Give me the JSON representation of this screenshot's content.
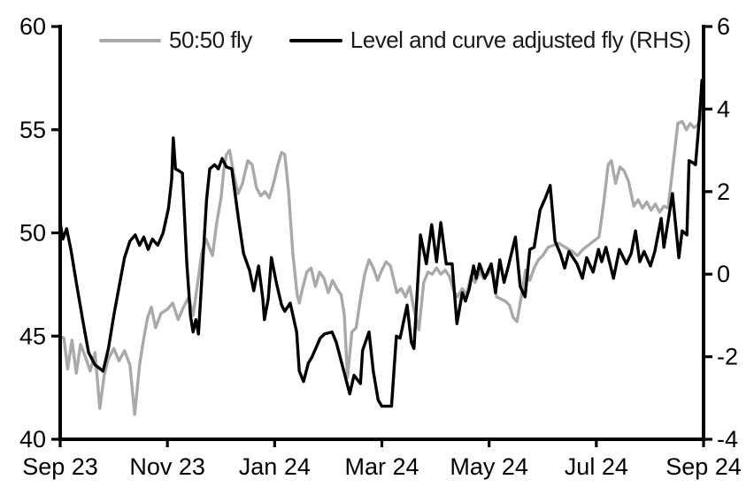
{
  "colors": {
    "background": "#ffffff",
    "axis": "#000000",
    "gray_series": "#a9a9a9",
    "black_series": "#000000"
  },
  "chart_data": {
    "type": "line",
    "title": "",
    "xlabel": "",
    "ylabel_left": "",
    "ylabel_right": "",
    "grid": false,
    "legend_position": "top",
    "x_axis": {
      "tick_labels": [
        "Sep 23",
        "Nov 23",
        "Jan 24",
        "Mar 24",
        "May 24",
        "Jul 24",
        "Sep 24"
      ],
      "tick_positions_months": [
        0,
        2,
        4,
        6,
        8,
        10,
        12
      ],
      "range_months": [
        0,
        12
      ]
    },
    "y_axis_left": {
      "ticks": [
        40,
        45,
        50,
        55,
        60
      ],
      "range": [
        40,
        60
      ]
    },
    "y_axis_right": {
      "ticks": [
        -4,
        -2,
        0,
        2,
        4,
        6
      ],
      "range": [
        -4,
        6
      ]
    },
    "series": [
      {
        "name": "50:50 fly",
        "axis": "left",
        "color": "#a9a9a9",
        "points": [
          [
            0.0,
            45.0
          ],
          [
            0.07,
            44.9
          ],
          [
            0.14,
            43.4
          ],
          [
            0.22,
            44.8
          ],
          [
            0.3,
            43.2
          ],
          [
            0.38,
            44.6
          ],
          [
            0.47,
            44.0
          ],
          [
            0.56,
            43.3
          ],
          [
            0.65,
            44.2
          ],
          [
            0.74,
            41.5
          ],
          [
            0.82,
            43.1
          ],
          [
            0.9,
            43.9
          ],
          [
            1.0,
            44.4
          ],
          [
            1.1,
            43.8
          ],
          [
            1.2,
            44.3
          ],
          [
            1.3,
            43.6
          ],
          [
            1.39,
            41.2
          ],
          [
            1.48,
            43.6
          ],
          [
            1.56,
            44.9
          ],
          [
            1.63,
            45.9
          ],
          [
            1.7,
            46.4
          ],
          [
            1.78,
            45.4
          ],
          [
            1.88,
            46.1
          ],
          [
            2.0,
            46.3
          ],
          [
            2.1,
            46.6
          ],
          [
            2.2,
            45.8
          ],
          [
            2.3,
            46.4
          ],
          [
            2.4,
            46.9
          ],
          [
            2.48,
            46.0
          ],
          [
            2.56,
            47.5
          ],
          [
            2.64,
            49.0
          ],
          [
            2.72,
            49.7
          ],
          [
            2.84,
            48.9
          ],
          [
            2.92,
            50.5
          ],
          [
            3.0,
            51.7
          ],
          [
            3.05,
            53.0
          ],
          [
            3.1,
            53.8
          ],
          [
            3.16,
            54.0
          ],
          [
            3.24,
            52.8
          ],
          [
            3.32,
            51.9
          ],
          [
            3.4,
            52.4
          ],
          [
            3.5,
            53.5
          ],
          [
            3.58,
            53.3
          ],
          [
            3.66,
            52.2
          ],
          [
            3.74,
            51.8
          ],
          [
            3.82,
            52.0
          ],
          [
            3.9,
            51.7
          ],
          [
            3.98,
            52.4
          ],
          [
            4.06,
            53.3
          ],
          [
            4.13,
            53.9
          ],
          [
            4.19,
            53.8
          ],
          [
            4.26,
            52.0
          ],
          [
            4.34,
            49.0
          ],
          [
            4.42,
            47.0
          ],
          [
            4.46,
            46.6
          ],
          [
            4.52,
            47.3
          ],
          [
            4.6,
            48.1
          ],
          [
            4.68,
            48.3
          ],
          [
            4.76,
            47.4
          ],
          [
            4.84,
            48.1
          ],
          [
            4.92,
            47.8
          ],
          [
            5.0,
            47.1
          ],
          [
            5.08,
            47.7
          ],
          [
            5.16,
            47.3
          ],
          [
            5.24,
            47.0
          ],
          [
            5.3,
            46.0
          ],
          [
            5.36,
            43.0
          ],
          [
            5.44,
            45.2
          ],
          [
            5.52,
            45.4
          ],
          [
            5.6,
            46.8
          ],
          [
            5.68,
            48.0
          ],
          [
            5.76,
            48.7
          ],
          [
            5.84,
            48.3
          ],
          [
            5.92,
            47.7
          ],
          [
            6.0,
            48.2
          ],
          [
            6.08,
            48.6
          ],
          [
            6.16,
            48.4
          ],
          [
            6.28,
            47.1
          ],
          [
            6.36,
            47.3
          ],
          [
            6.44,
            46.9
          ],
          [
            6.52,
            47.4
          ],
          [
            6.6,
            46.3
          ],
          [
            6.69,
            45.3
          ],
          [
            6.78,
            47.6
          ],
          [
            6.86,
            48.1
          ],
          [
            6.94,
            48.0
          ],
          [
            7.02,
            48.3
          ],
          [
            7.1,
            48.0
          ],
          [
            7.18,
            48.2
          ],
          [
            7.26,
            47.9
          ],
          [
            7.34,
            47.2
          ],
          [
            7.41,
            46.9
          ],
          [
            7.5,
            47.3
          ],
          [
            7.58,
            47.0
          ],
          [
            7.66,
            47.9
          ],
          [
            7.74,
            47.6
          ],
          [
            7.82,
            48.1
          ],
          [
            7.9,
            47.8
          ],
          [
            7.98,
            48.0
          ],
          [
            8.06,
            48.2
          ],
          [
            8.14,
            46.9
          ],
          [
            8.22,
            46.8
          ],
          [
            8.3,
            46.7
          ],
          [
            8.38,
            46.5
          ],
          [
            8.45,
            45.9
          ],
          [
            8.52,
            45.7
          ],
          [
            8.6,
            46.9
          ],
          [
            8.68,
            48.2
          ],
          [
            8.76,
            47.7
          ],
          [
            8.84,
            48.3
          ],
          [
            8.92,
            48.7
          ],
          [
            9.0,
            48.9
          ],
          [
            9.1,
            49.3
          ],
          [
            9.2,
            49.4
          ],
          [
            9.3,
            49.5
          ],
          [
            9.42,
            49.3
          ],
          [
            9.55,
            49.1
          ],
          [
            9.65,
            48.9
          ],
          [
            9.75,
            49.2
          ],
          [
            9.85,
            49.4
          ],
          [
            9.95,
            49.6
          ],
          [
            10.05,
            49.8
          ],
          [
            10.14,
            51.5
          ],
          [
            10.22,
            53.3
          ],
          [
            10.28,
            53.5
          ],
          [
            10.36,
            52.4
          ],
          [
            10.44,
            53.2
          ],
          [
            10.52,
            53.0
          ],
          [
            10.6,
            52.5
          ],
          [
            10.7,
            51.3
          ],
          [
            10.78,
            51.6
          ],
          [
            10.86,
            51.2
          ],
          [
            10.94,
            51.5
          ],
          [
            11.02,
            51.1
          ],
          [
            11.1,
            51.4
          ],
          [
            11.18,
            51.0
          ],
          [
            11.26,
            51.3
          ],
          [
            11.34,
            51.2
          ],
          [
            11.44,
            53.5
          ],
          [
            11.52,
            55.3
          ],
          [
            11.6,
            55.4
          ],
          [
            11.68,
            55.0
          ],
          [
            11.75,
            55.3
          ],
          [
            11.82,
            55.1
          ],
          [
            11.88,
            55.2
          ],
          [
            11.94,
            55.5
          ],
          [
            12.0,
            56.4
          ]
        ]
      },
      {
        "name": "Level and curve adjusted fly (RHS)",
        "axis": "right",
        "color": "#000000",
        "points": [
          [
            0.0,
            1.25
          ],
          [
            0.05,
            0.85
          ],
          [
            0.12,
            1.1
          ],
          [
            0.2,
            0.6
          ],
          [
            0.3,
            -0.2
          ],
          [
            0.42,
            -1.1
          ],
          [
            0.53,
            -1.9
          ],
          [
            0.65,
            -2.2
          ],
          [
            0.8,
            -2.35
          ],
          [
            0.9,
            -1.8
          ],
          [
            1.0,
            -1.0
          ],
          [
            1.1,
            -0.3
          ],
          [
            1.2,
            0.4
          ],
          [
            1.3,
            0.8
          ],
          [
            1.4,
            0.95
          ],
          [
            1.48,
            0.7
          ],
          [
            1.56,
            0.9
          ],
          [
            1.64,
            0.6
          ],
          [
            1.72,
            0.85
          ],
          [
            1.82,
            0.7
          ],
          [
            1.92,
            1.0
          ],
          [
            2.02,
            1.6
          ],
          [
            2.08,
            2.3
          ],
          [
            2.11,
            3.3
          ],
          [
            2.15,
            2.55
          ],
          [
            2.22,
            2.5
          ],
          [
            2.28,
            2.45
          ],
          [
            2.36,
            0.3
          ],
          [
            2.43,
            -1.0
          ],
          [
            2.48,
            -1.4
          ],
          [
            2.53,
            -1.1
          ],
          [
            2.58,
            -1.45
          ],
          [
            2.66,
            0.3
          ],
          [
            2.73,
            1.8
          ],
          [
            2.79,
            2.55
          ],
          [
            2.88,
            2.65
          ],
          [
            2.95,
            2.55
          ],
          [
            3.02,
            2.8
          ],
          [
            3.1,
            2.6
          ],
          [
            3.2,
            2.55
          ],
          [
            3.33,
            1.3
          ],
          [
            3.42,
            0.5
          ],
          [
            3.53,
            0.1
          ],
          [
            3.61,
            -0.4
          ],
          [
            3.7,
            0.2
          ],
          [
            3.78,
            -0.6
          ],
          [
            3.81,
            -1.1
          ],
          [
            3.88,
            -0.6
          ],
          [
            3.94,
            0.4
          ],
          [
            4.03,
            -0.2
          ],
          [
            4.13,
            -0.75
          ],
          [
            4.19,
            -0.9
          ],
          [
            4.29,
            -0.7
          ],
          [
            4.41,
            -1.4
          ],
          [
            4.46,
            -2.35
          ],
          [
            4.54,
            -2.6
          ],
          [
            4.63,
            -2.15
          ],
          [
            4.7,
            -2.0
          ],
          [
            4.85,
            -1.55
          ],
          [
            4.93,
            -1.45
          ],
          [
            5.07,
            -1.4
          ],
          [
            5.15,
            -1.65
          ],
          [
            5.28,
            -2.3
          ],
          [
            5.4,
            -2.9
          ],
          [
            5.48,
            -2.45
          ],
          [
            5.6,
            -2.65
          ],
          [
            5.64,
            -1.85
          ],
          [
            5.76,
            -1.4
          ],
          [
            5.84,
            -2.35
          ],
          [
            5.93,
            -3.05
          ],
          [
            6.0,
            -3.2
          ],
          [
            6.18,
            -3.2
          ],
          [
            6.27,
            -1.5
          ],
          [
            6.34,
            -1.55
          ],
          [
            6.47,
            -0.75
          ],
          [
            6.55,
            -1.65
          ],
          [
            6.6,
            -1.8
          ],
          [
            6.72,
            0.95
          ],
          [
            6.83,
            0.25
          ],
          [
            6.93,
            1.2
          ],
          [
            7.02,
            0.3
          ],
          [
            7.1,
            1.25
          ],
          [
            7.2,
            0.25
          ],
          [
            7.31,
            0.25
          ],
          [
            7.4,
            -1.2
          ],
          [
            7.5,
            -0.45
          ],
          [
            7.56,
            -0.65
          ],
          [
            7.63,
            -0.35
          ],
          [
            7.71,
            0.2
          ],
          [
            7.76,
            -0.1
          ],
          [
            7.82,
            0.25
          ],
          [
            7.92,
            -0.1
          ],
          [
            8.04,
            0.25
          ],
          [
            8.12,
            -0.45
          ],
          [
            8.2,
            0.35
          ],
          [
            8.28,
            -0.2
          ],
          [
            8.36,
            0.2
          ],
          [
            8.49,
            0.9
          ],
          [
            8.58,
            -0.3
          ],
          [
            8.67,
            -0.55
          ],
          [
            8.76,
            0.6
          ],
          [
            8.84,
            0.65
          ],
          [
            8.95,
            1.55
          ],
          [
            9.05,
            1.85
          ],
          [
            9.14,
            2.15
          ],
          [
            9.23,
            0.8
          ],
          [
            9.33,
            0.5
          ],
          [
            9.41,
            0.15
          ],
          [
            9.49,
            0.55
          ],
          [
            9.64,
            0.25
          ],
          [
            9.74,
            -0.1
          ],
          [
            9.82,
            0.4
          ],
          [
            9.94,
            0.05
          ],
          [
            10.04,
            0.6
          ],
          [
            10.1,
            0.3
          ],
          [
            10.18,
            0.65
          ],
          [
            10.32,
            -0.1
          ],
          [
            10.43,
            0.6
          ],
          [
            10.56,
            0.25
          ],
          [
            10.65,
            0.5
          ],
          [
            10.73,
            1.05
          ],
          [
            10.81,
            0.3
          ],
          [
            10.89,
            0.55
          ],
          [
            11.01,
            0.2
          ],
          [
            11.09,
            0.55
          ],
          [
            11.21,
            1.35
          ],
          [
            11.26,
            0.65
          ],
          [
            11.42,
            1.95
          ],
          [
            11.54,
            0.4
          ],
          [
            11.6,
            1.05
          ],
          [
            11.69,
            0.95
          ],
          [
            11.73,
            2.75
          ],
          [
            11.8,
            2.7
          ],
          [
            11.85,
            2.65
          ],
          [
            11.92,
            3.75
          ],
          [
            11.97,
            4.7
          ],
          [
            12.0,
            4.6
          ]
        ]
      }
    ]
  }
}
